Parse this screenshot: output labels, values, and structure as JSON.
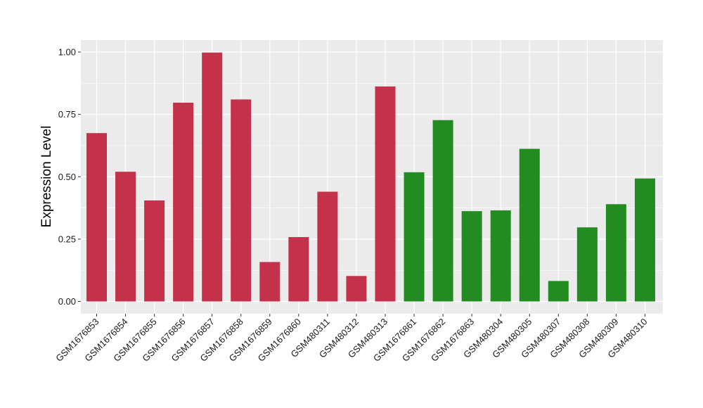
{
  "chart_data": {
    "type": "bar",
    "title": "",
    "xlabel": "",
    "ylabel": "Expression Level",
    "ylim": [
      0,
      1.05
    ],
    "yticks": [
      0.0,
      0.25,
      0.5,
      0.75,
      1.0
    ],
    "ytick_labels": [
      "0.00",
      "0.25",
      "0.50",
      "0.75",
      "1.00"
    ],
    "grid": true,
    "legend": "none",
    "categories": [
      "GSM1676853",
      "GSM1676854",
      "GSM1676855",
      "GSM1676856",
      "GSM1676857",
      "GSM1676858",
      "GSM1676859",
      "GSM1676860",
      "GSM480311",
      "GSM480312",
      "GSM480313",
      "GSM1676861",
      "GSM1676862",
      "GSM1676863",
      "GSM480304",
      "GSM480305",
      "GSM480307",
      "GSM480308",
      "GSM480309",
      "GSM480310"
    ],
    "values": [
      0.675,
      0.52,
      0.405,
      0.797,
      0.998,
      0.81,
      0.158,
      0.258,
      0.44,
      0.102,
      0.862,
      0.518,
      0.727,
      0.362,
      0.365,
      0.612,
      0.082,
      0.297,
      0.39,
      0.493
    ],
    "groups": [
      "red",
      "red",
      "red",
      "red",
      "red",
      "red",
      "red",
      "red",
      "red",
      "red",
      "red",
      "green",
      "green",
      "green",
      "green",
      "green",
      "green",
      "green",
      "green",
      "green"
    ],
    "colors": {
      "red": "#c4314b",
      "green": "#228b22",
      "panel": "#ebebeb",
      "grid": "#ffffff"
    }
  }
}
